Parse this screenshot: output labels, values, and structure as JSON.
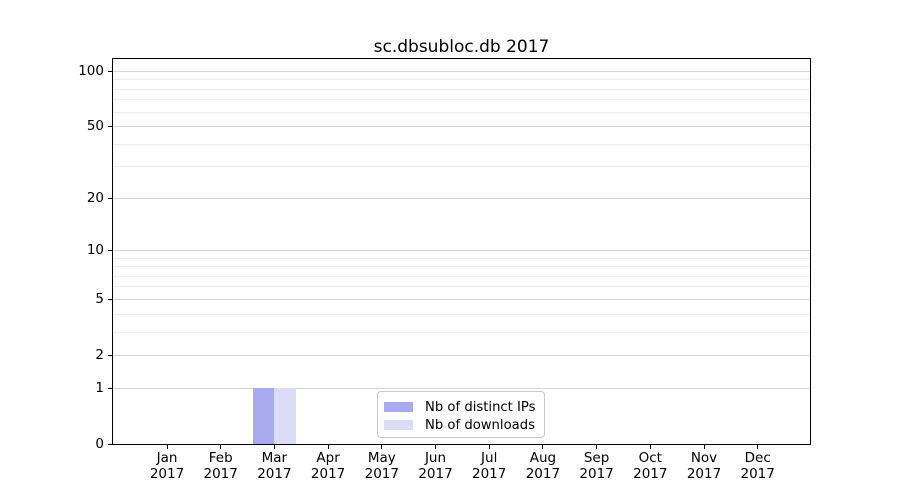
{
  "chart_data": {
    "type": "bar",
    "title": "sc.dbsubloc.db 2017",
    "scale": "log1p",
    "categories": [
      "Jan",
      "Feb",
      "Mar",
      "Apr",
      "May",
      "Jun",
      "Jul",
      "Aug",
      "Sep",
      "Oct",
      "Nov",
      "Dec"
    ],
    "category_year": "2017",
    "series": [
      {
        "name": "Nb of distinct IPs",
        "color": "#aaaaf0",
        "values": [
          0,
          0,
          1,
          0,
          0,
          0,
          0,
          0,
          0,
          0,
          0,
          0
        ]
      },
      {
        "name": "Nb of downloads",
        "color": "#dcdcf9",
        "values": [
          0,
          0,
          1,
          0,
          0,
          0,
          0,
          0,
          0,
          0,
          0,
          0
        ]
      }
    ],
    "yticks": [
      0,
      1,
      2,
      5,
      10,
      20,
      50,
      100
    ],
    "minor_yticks": [
      3,
      4,
      6,
      7,
      8,
      9,
      30,
      40,
      60,
      70,
      80,
      90
    ],
    "ylim": [
      0,
      116
    ],
    "grid": "horizontal-only",
    "legend_position": "lower center",
    "colors": {
      "major_grid": "#d4d4d4",
      "minor_grid": "#ececec",
      "axis": "#000000",
      "background": "#ffffff"
    }
  }
}
